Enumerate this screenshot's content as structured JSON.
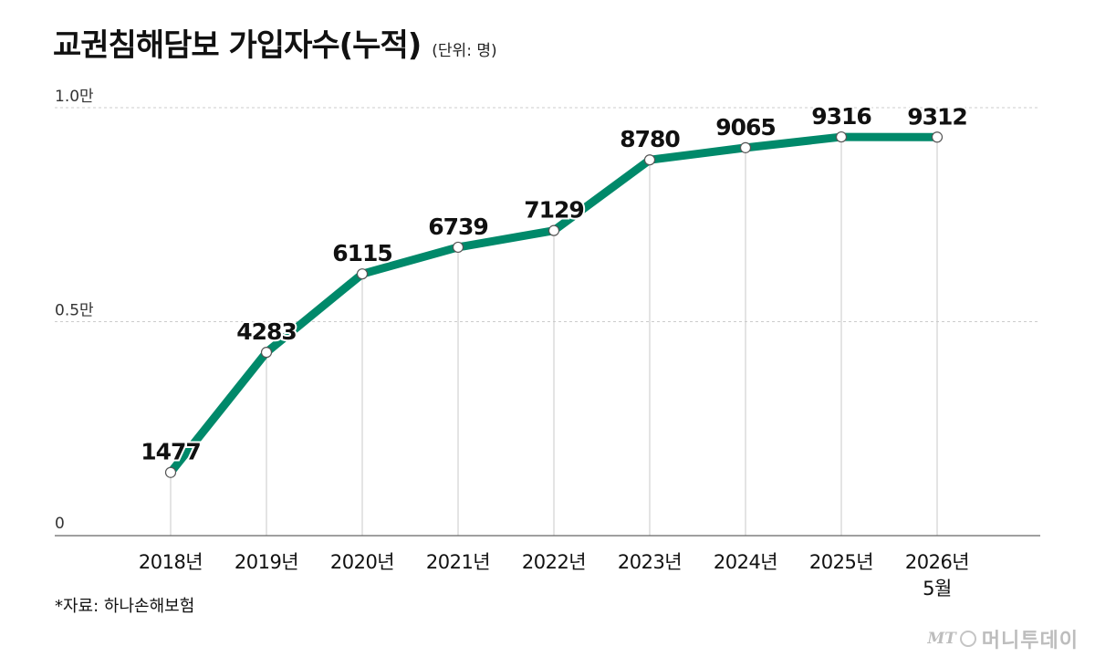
{
  "header": {
    "title": "교권침해담보 가입자수(누적)",
    "unit": "(단위: 명)"
  },
  "source": "*자료: 하나손해보험",
  "watermark": {
    "logo": "MT",
    "name": "머니투데이"
  },
  "colors": {
    "line": "#00896a",
    "grid": "#cccccc",
    "text": "#111111"
  },
  "chart_data": {
    "type": "line",
    "categories": [
      "2018년",
      "2019년",
      "2020년",
      "2021년",
      "2022년",
      "2023년",
      "2024년",
      "2025년",
      "2026년\n5월"
    ],
    "values": [
      1477,
      4283,
      6115,
      6739,
      7129,
      8780,
      9065,
      9316,
      9312
    ],
    "data_labels": [
      "1477",
      "4283",
      "6115",
      "6739",
      "7129",
      "8780",
      "9065",
      "9316",
      "9312"
    ],
    "y_ticks": [
      {
        "value": 0,
        "label": "0"
      },
      {
        "value": 5000,
        "label": "0.5만"
      },
      {
        "value": 10000,
        "label": "1.0만"
      }
    ],
    "ylim": [
      0,
      10000
    ],
    "grid": true,
    "title": "교권침해담보 가입자수(누적)",
    "xlabel": "",
    "ylabel": ""
  }
}
